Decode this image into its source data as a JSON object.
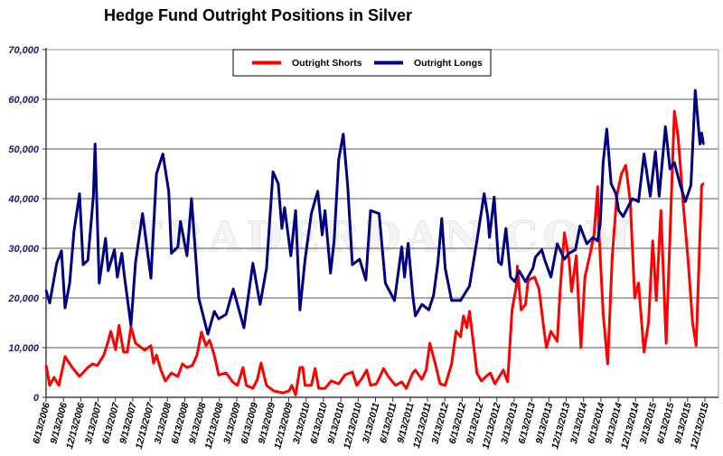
{
  "chart_data": {
    "type": "line",
    "title": "Hedge Fund Outright Positions in Silver",
    "xlabel": "",
    "ylabel": "",
    "ylim": [
      0,
      70000
    ],
    "yticks": [
      "0",
      "10,000",
      "20,000",
      "30,000",
      "40,000",
      "50,000",
      "60,000",
      "70,000"
    ],
    "xticks": [
      "6/13/2006",
      "9/13/2006",
      "12/13/2006",
      "3/13/2007",
      "6/13/2007",
      "9/13/2007",
      "12/13/2007",
      "3/13/2008",
      "6/13/2008",
      "9/13/2008",
      "12/13/2008",
      "3/13/2009",
      "6/13/2009",
      "9/13/2009",
      "12/13/2009",
      "3/13/2010",
      "6/13/2010",
      "9/13/2010",
      "12/13/2010",
      "3/13/2011",
      "6/13/2011",
      "9/13/2011",
      "12/13/2011",
      "3/13/2012",
      "6/13/2012",
      "9/13/2012",
      "12/13/2012",
      "3/13/2013",
      "6/13/2013",
      "9/13/2013",
      "12/13/2013",
      "3/13/2014",
      "6/13/2014",
      "9/13/2014",
      "12/13/2014",
      "3/13/2015",
      "6/13/2015",
      "9/13/2015",
      "12/13/2015"
    ],
    "xlim": [
      "2006-06-13",
      "2015-12-13"
    ],
    "grid": true,
    "legend_position": "top-center",
    "watermark": "TRADERDAN.COM",
    "series": [
      {
        "name": "Outright Shorts",
        "color": "#ff0000",
        "points": [
          [
            "2006-06-13",
            6400
          ],
          [
            "2006-07-02",
            2400
          ],
          [
            "2006-07-25",
            4000
          ],
          [
            "2006-08-19",
            2400
          ],
          [
            "2006-09-21",
            8200
          ],
          [
            "2006-10-29",
            6000
          ],
          [
            "2006-12-06",
            4200
          ],
          [
            "2007-01-19",
            6000
          ],
          [
            "2007-02-12",
            6700
          ],
          [
            "2007-03-10",
            6400
          ],
          [
            "2007-04-13",
            8500
          ],
          [
            "2007-05-06",
            11300
          ],
          [
            "2007-05-20",
            13300
          ],
          [
            "2007-06-14",
            9600
          ],
          [
            "2007-07-02",
            14500
          ],
          [
            "2007-07-26",
            9100
          ],
          [
            "2007-08-15",
            9100
          ],
          [
            "2007-09-03",
            14200
          ],
          [
            "2007-09-27",
            10900
          ],
          [
            "2007-11-14",
            9500
          ],
          [
            "2007-12-17",
            10400
          ],
          [
            "2007-12-31",
            6900
          ],
          [
            "2008-01-15",
            8500
          ],
          [
            "2008-02-08",
            5500
          ],
          [
            "2008-03-02",
            3300
          ],
          [
            "2008-04-03",
            4900
          ],
          [
            "2008-05-07",
            4200
          ],
          [
            "2008-05-31",
            6700
          ],
          [
            "2008-06-24",
            6000
          ],
          [
            "2008-07-22",
            6400
          ],
          [
            "2008-08-16",
            8500
          ],
          [
            "2008-09-08",
            13100
          ],
          [
            "2008-10-02",
            10400
          ],
          [
            "2008-10-21",
            11500
          ],
          [
            "2008-11-15",
            8500
          ],
          [
            "2008-12-08",
            4500
          ],
          [
            "2009-01-16",
            4900
          ],
          [
            "2009-02-19",
            3100
          ],
          [
            "2009-03-17",
            2400
          ],
          [
            "2009-04-15",
            6000
          ],
          [
            "2009-05-03",
            2400
          ],
          [
            "2009-06-06",
            1800
          ],
          [
            "2009-06-30",
            3600
          ],
          [
            "2009-07-19",
            6900
          ],
          [
            "2009-08-17",
            2400
          ],
          [
            "2009-09-24",
            1300
          ],
          [
            "2009-11-11",
            900
          ],
          [
            "2009-12-14",
            1300
          ],
          [
            "2009-12-28",
            2400
          ],
          [
            "2010-01-17",
            500
          ],
          [
            "2010-02-09",
            6000
          ],
          [
            "2010-02-24",
            6000
          ],
          [
            "2010-03-08",
            2400
          ],
          [
            "2010-04-10",
            2400
          ],
          [
            "2010-04-30",
            5800
          ],
          [
            "2010-05-19",
            1800
          ],
          [
            "2010-06-21",
            1800
          ],
          [
            "2010-07-24",
            3300
          ],
          [
            "2010-09-01",
            2700
          ],
          [
            "2010-10-04",
            4500
          ],
          [
            "2010-11-12",
            5100
          ],
          [
            "2010-12-05",
            2400
          ],
          [
            "2010-12-29",
            3600
          ],
          [
            "2011-01-27",
            5500
          ],
          [
            "2011-02-16",
            2400
          ],
          [
            "2011-03-19",
            2700
          ],
          [
            "2011-04-26",
            5800
          ],
          [
            "2011-05-20",
            4200
          ],
          [
            "2011-06-27",
            2400
          ],
          [
            "2011-07-30",
            3100
          ],
          [
            "2011-08-23",
            1800
          ],
          [
            "2011-09-26",
            4900
          ],
          [
            "2011-10-10",
            5500
          ],
          [
            "2011-11-13",
            3600
          ],
          [
            "2011-12-06",
            5500
          ],
          [
            "2011-12-25",
            10900
          ],
          [
            "2012-01-23",
            6700
          ],
          [
            "2012-02-17",
            2700
          ],
          [
            "2012-03-15",
            2400
          ],
          [
            "2012-04-18",
            6700
          ],
          [
            "2012-05-11",
            13300
          ],
          [
            "2012-06-04",
            12200
          ],
          [
            "2012-06-19",
            16400
          ],
          [
            "2012-07-07",
            14000
          ],
          [
            "2012-07-21",
            17300
          ],
          [
            "2012-08-05",
            12700
          ],
          [
            "2012-08-29",
            4900
          ],
          [
            "2012-09-22",
            3300
          ],
          [
            "2012-10-16",
            4200
          ],
          [
            "2012-11-08",
            4900
          ],
          [
            "2012-12-02",
            2700
          ],
          [
            "2013-01-15",
            5500
          ],
          [
            "2013-02-07",
            3100
          ],
          [
            "2013-03-02",
            17600
          ],
          [
            "2013-03-25",
            22400
          ],
          [
            "2013-03-30",
            26400
          ],
          [
            "2013-04-19",
            17600
          ],
          [
            "2013-05-12",
            18700
          ],
          [
            "2013-05-26",
            23600
          ],
          [
            "2013-06-29",
            24200
          ],
          [
            "2013-07-22",
            21800
          ],
          [
            "2013-08-16",
            14000
          ],
          [
            "2013-08-30",
            10000
          ],
          [
            "2013-09-23",
            13300
          ],
          [
            "2013-10-26",
            11300
          ],
          [
            "2013-11-10",
            21300
          ],
          [
            "2013-12-03",
            33100
          ],
          [
            "2013-12-27",
            27800
          ],
          [
            "2014-01-10",
            21300
          ],
          [
            "2014-02-03",
            28500
          ],
          [
            "2014-02-28",
            10000
          ],
          [
            "2014-03-21",
            24200
          ],
          [
            "2014-04-15",
            28500
          ],
          [
            "2014-05-08",
            32700
          ],
          [
            "2014-05-27",
            42400
          ],
          [
            "2014-06-01",
            34500
          ],
          [
            "2014-06-25",
            16900
          ],
          [
            "2014-07-19",
            6700
          ],
          [
            "2014-08-12",
            28500
          ],
          [
            "2014-09-05",
            40500
          ],
          [
            "2014-09-29",
            45000
          ],
          [
            "2014-10-22",
            46700
          ],
          [
            "2014-11-15",
            39400
          ],
          [
            "2014-12-08",
            20000
          ],
          [
            "2014-12-28",
            23000
          ],
          [
            "2015-01-26",
            9100
          ],
          [
            "2015-02-19",
            15100
          ],
          [
            "2015-03-13",
            31500
          ],
          [
            "2015-04-01",
            19500
          ],
          [
            "2015-04-25",
            37600
          ],
          [
            "2015-05-23",
            10900
          ],
          [
            "2015-06-12",
            32200
          ],
          [
            "2015-07-05",
            57600
          ],
          [
            "2015-07-24",
            52700
          ],
          [
            "2015-08-22",
            38200
          ],
          [
            "2015-09-15",
            27800
          ],
          [
            "2015-10-09",
            15100
          ],
          [
            "2015-10-28",
            10400
          ],
          [
            "2015-11-26",
            42700
          ],
          [
            "2015-12-05",
            43000
          ]
        ]
      },
      {
        "name": "Outright Longs",
        "color": "#000080",
        "points": [
          [
            "2006-06-13",
            21500
          ],
          [
            "2006-07-02",
            19000
          ],
          [
            "2006-08-08",
            27000
          ],
          [
            "2006-09-02",
            29500
          ],
          [
            "2006-09-21",
            18000
          ],
          [
            "2006-10-15",
            23000
          ],
          [
            "2006-11-07",
            33500
          ],
          [
            "2006-12-06",
            41000
          ],
          [
            "2006-12-25",
            26700
          ],
          [
            "2007-01-19",
            27600
          ],
          [
            "2007-02-17",
            40500
          ],
          [
            "2007-02-26",
            51000
          ],
          [
            "2007-03-20",
            23000
          ],
          [
            "2007-04-22",
            32000
          ],
          [
            "2007-05-06",
            25500
          ],
          [
            "2007-06-08",
            29700
          ],
          [
            "2007-06-23",
            24200
          ],
          [
            "2007-07-17",
            29000
          ],
          [
            "2007-07-31",
            24200
          ],
          [
            "2007-09-03",
            14500
          ],
          [
            "2007-09-27",
            27200
          ],
          [
            "2007-11-03",
            37000
          ],
          [
            "2007-12-17",
            24000
          ],
          [
            "2008-01-15",
            45000
          ],
          [
            "2008-02-18",
            49000
          ],
          [
            "2008-03-20",
            41500
          ],
          [
            "2008-04-03",
            29000
          ],
          [
            "2008-05-07",
            30300
          ],
          [
            "2008-05-21",
            35400
          ],
          [
            "2008-06-24",
            28500
          ],
          [
            "2008-07-18",
            40000
          ],
          [
            "2008-08-25",
            20000
          ],
          [
            "2008-10-12",
            12700
          ],
          [
            "2008-11-15",
            17300
          ],
          [
            "2008-12-08",
            15800
          ],
          [
            "2009-01-16",
            16700
          ],
          [
            "2009-02-23",
            21800
          ],
          [
            "2009-04-20",
            14000
          ],
          [
            "2009-06-06",
            27000
          ],
          [
            "2009-07-14",
            18700
          ],
          [
            "2009-08-17",
            26000
          ],
          [
            "2009-09-20",
            45400
          ],
          [
            "2009-10-18",
            43000
          ],
          [
            "2009-11-06",
            34000
          ],
          [
            "2009-11-20",
            38200
          ],
          [
            "2009-12-23",
            28500
          ],
          [
            "2010-01-17",
            37600
          ],
          [
            "2010-02-09",
            17600
          ],
          [
            "2010-03-08",
            27800
          ],
          [
            "2010-04-10",
            37000
          ],
          [
            "2010-05-14",
            41500
          ],
          [
            "2010-06-06",
            32700
          ],
          [
            "2010-06-21",
            37600
          ],
          [
            "2010-07-20",
            25000
          ],
          [
            "2010-08-08",
            31500
          ],
          [
            "2010-09-01",
            47800
          ],
          [
            "2010-09-25",
            53000
          ],
          [
            "2010-10-19",
            42400
          ],
          [
            "2010-11-12",
            26700
          ],
          [
            "2010-12-20",
            27800
          ],
          [
            "2011-01-22",
            23600
          ],
          [
            "2011-02-16",
            37600
          ],
          [
            "2011-04-02",
            37000
          ],
          [
            "2011-05-05",
            23000
          ],
          [
            "2011-06-22",
            19500
          ],
          [
            "2011-07-30",
            30300
          ],
          [
            "2011-08-14",
            24200
          ],
          [
            "2011-09-02",
            31000
          ],
          [
            "2011-09-26",
            20600
          ],
          [
            "2011-10-10",
            16400
          ],
          [
            "2011-11-13",
            18700
          ],
          [
            "2011-12-20",
            17600
          ],
          [
            "2012-01-14",
            20600
          ],
          [
            "2012-02-06",
            27200
          ],
          [
            "2012-02-26",
            36000
          ],
          [
            "2012-03-15",
            26000
          ],
          [
            "2012-04-18",
            19500
          ],
          [
            "2012-06-04",
            19500
          ],
          [
            "2012-07-21",
            22400
          ],
          [
            "2012-08-29",
            31500
          ],
          [
            "2012-10-06",
            41000
          ],
          [
            "2012-10-25",
            36400
          ],
          [
            "2012-11-03",
            32200
          ],
          [
            "2012-11-28",
            40300
          ],
          [
            "2012-12-21",
            27300
          ],
          [
            "2013-01-05",
            26700
          ],
          [
            "2013-01-29",
            34000
          ],
          [
            "2013-02-22",
            24200
          ],
          [
            "2013-03-16",
            23300
          ],
          [
            "2013-04-08",
            25500
          ],
          [
            "2013-05-12",
            23300
          ],
          [
            "2013-06-20",
            26000
          ],
          [
            "2013-07-03",
            28200
          ],
          [
            "2013-08-06",
            29700
          ],
          [
            "2013-08-20",
            27800
          ],
          [
            "2013-09-23",
            24200
          ],
          [
            "2013-10-26",
            30900
          ],
          [
            "2013-12-03",
            27800
          ],
          [
            "2013-12-27",
            29000
          ],
          [
            "2014-01-30",
            29700
          ],
          [
            "2014-02-23",
            34500
          ],
          [
            "2014-03-31",
            30900
          ],
          [
            "2014-05-03",
            32200
          ],
          [
            "2014-05-27",
            31500
          ],
          [
            "2014-06-10",
            35000
          ],
          [
            "2014-06-25",
            47300
          ],
          [
            "2014-07-14",
            54000
          ],
          [
            "2014-08-06",
            43000
          ],
          [
            "2014-08-31",
            41000
          ],
          [
            "2014-09-15",
            37600
          ],
          [
            "2014-10-08",
            36400
          ],
          [
            "2014-11-01",
            38200
          ],
          [
            "2014-11-25",
            40000
          ],
          [
            "2014-12-28",
            39400
          ],
          [
            "2015-01-26",
            49000
          ],
          [
            "2015-02-28",
            40500
          ],
          [
            "2015-03-27",
            49500
          ],
          [
            "2015-04-16",
            40500
          ],
          [
            "2015-05-19",
            54500
          ],
          [
            "2015-06-12",
            46000
          ],
          [
            "2015-07-05",
            47300
          ],
          [
            "2015-08-03",
            43000
          ],
          [
            "2015-09-01",
            39400
          ],
          [
            "2015-09-30",
            42700
          ],
          [
            "2015-10-23",
            61800
          ],
          [
            "2015-11-17",
            51000
          ],
          [
            "2015-11-26",
            53200
          ],
          [
            "2015-12-05",
            51000
          ]
        ]
      }
    ]
  }
}
